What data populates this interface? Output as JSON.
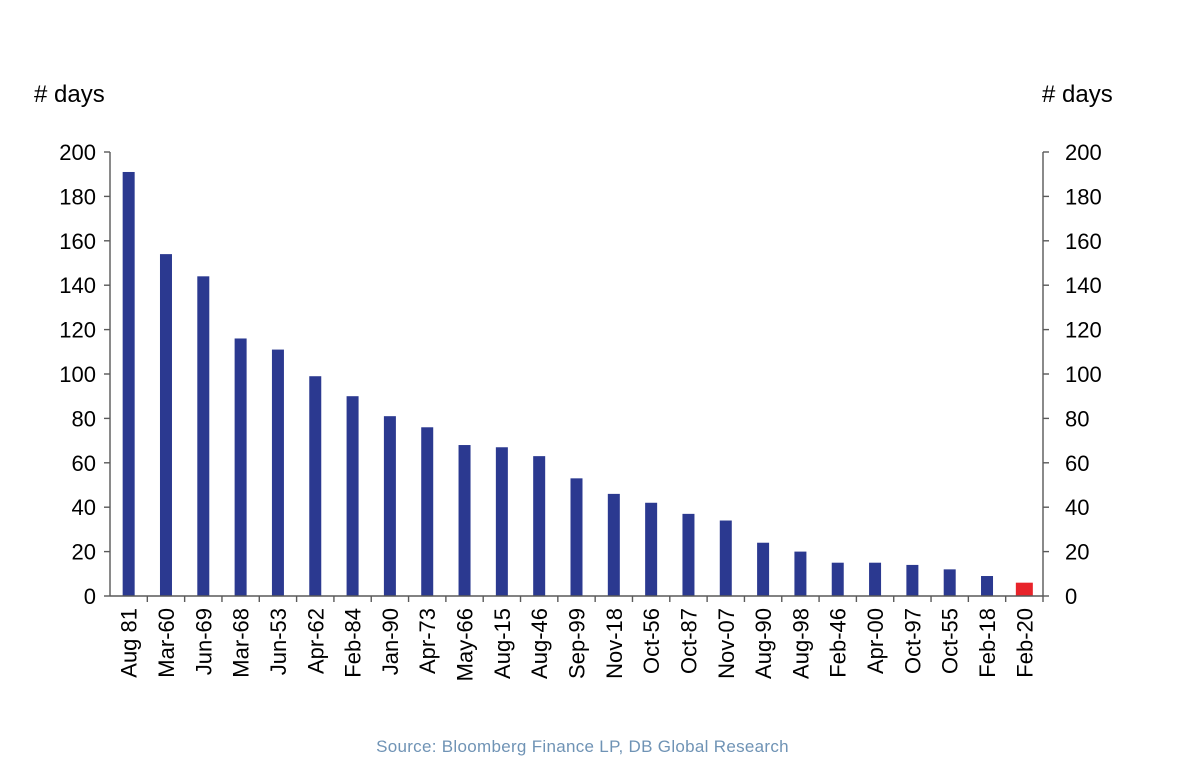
{
  "chart_data": {
    "type": "bar",
    "title": "",
    "ylabel_left": "# days",
    "ylabel_right": "# days",
    "ylim": [
      0,
      200
    ],
    "yticks": [
      "0",
      "20",
      "40",
      "60",
      "80",
      "100",
      "120",
      "140",
      "160",
      "180",
      "200"
    ],
    "categories": [
      "Aug 81",
      "Mar-60",
      "Jun-69",
      "Mar-68",
      "Jun-53",
      "Apr-62",
      "Feb-84",
      "Jan-90",
      "Apr-73",
      "May-66",
      "Aug-15",
      "Aug-46",
      "Sep-99",
      "Nov-18",
      "Oct-56",
      "Oct-87",
      "Nov-07",
      "Aug-90",
      "Aug-98",
      "Feb-46",
      "Apr-00",
      "Oct-97",
      "Oct-55",
      "Feb-18",
      "Feb-20"
    ],
    "values": [
      191,
      154,
      144,
      116,
      111,
      99,
      90,
      81,
      76,
      68,
      67,
      63,
      53,
      46,
      42,
      37,
      34,
      24,
      20,
      15,
      15,
      14,
      12,
      9,
      6
    ],
    "bar_color": "#2B3990",
    "highlight_color": "#E8232A",
    "highlight_index": 24,
    "grid": false
  },
  "source_note": "Source: Bloomberg Finance LP, DB Global Research",
  "colors": {
    "axis": "#595959",
    "source_text": "#6F93B5"
  }
}
